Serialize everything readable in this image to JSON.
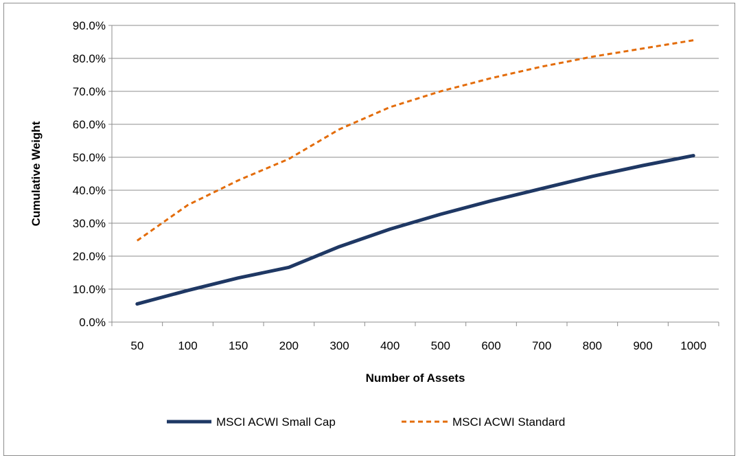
{
  "chart_data": {
    "type": "line",
    "title": "",
    "xlabel": "Number of Assets",
    "ylabel": "Cumulative Weight",
    "categories": [
      "50",
      "100",
      "150",
      "200",
      "300",
      "400",
      "500",
      "600",
      "700",
      "800",
      "900",
      "1000"
    ],
    "ylim": [
      0,
      90
    ],
    "yticks": [
      0,
      10,
      20,
      30,
      40,
      50,
      60,
      70,
      80,
      90
    ],
    "ytick_labels": [
      "0.0%",
      "10.0%",
      "20.0%",
      "30.0%",
      "40.0%",
      "50.0%",
      "60.0%",
      "70.0%",
      "80.0%",
      "90.0%"
    ],
    "grid": "horizontal",
    "legend_position": "bottom",
    "series": [
      {
        "name": "MSCI ACWI Small Cap",
        "color": "#1f3864",
        "style": "solid",
        "values": [
          5.5,
          9.6,
          13.4,
          16.6,
          22.9,
          28.2,
          32.7,
          36.8,
          40.5,
          44.2,
          47.5,
          50.5
        ]
      },
      {
        "name": "MSCI ACWI Standard",
        "color": "#e36c0a",
        "style": "dashed",
        "values": [
          24.7,
          35.5,
          43.0,
          49.5,
          58.5,
          65.2,
          70.0,
          74.0,
          77.5,
          80.5,
          83.0,
          85.5
        ]
      }
    ]
  }
}
